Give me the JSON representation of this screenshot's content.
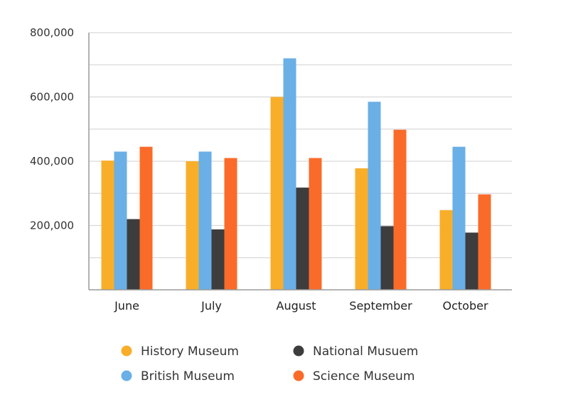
{
  "chart_data": {
    "type": "bar",
    "categories": [
      "June",
      "July",
      "August",
      "September",
      "October"
    ],
    "ylim": [
      0,
      800000
    ],
    "y_ticks": [
      {
        "value": 200000,
        "label": "200,000"
      },
      {
        "value": 400000,
        "label": "400,000"
      },
      {
        "value": 600000,
        "label": "600,000"
      },
      {
        "value": 800000,
        "label": "800,000"
      }
    ],
    "y_grid_step": 100000,
    "grid": true,
    "legend_position": "bottom",
    "series": [
      {
        "name": "History Museum",
        "color": "#F9AE2A",
        "values": [
          402000,
          400000,
          600000,
          378000,
          248000
        ]
      },
      {
        "name": "British Museum",
        "color": "#6AAFE6",
        "values": [
          430000,
          430000,
          720000,
          585000,
          445000
        ]
      },
      {
        "name": "National Musuem",
        "color": "#3D3D3D",
        "values": [
          220000,
          188000,
          318000,
          198000,
          178000
        ]
      },
      {
        "name": "Science Museum",
        "color": "#FA6B2A",
        "values": [
          445000,
          410000,
          410000,
          498000,
          297000
        ]
      }
    ]
  }
}
